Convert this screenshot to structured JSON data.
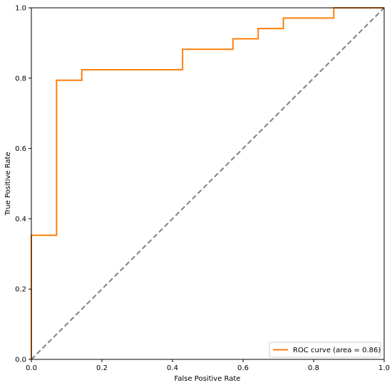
{
  "chart_data": {
    "type": "line",
    "xlabel": "False Positive Rate",
    "ylabel": "True Positive Rate",
    "xlim": [
      0.0,
      1.0
    ],
    "ylim": [
      0.0,
      1.0
    ],
    "grid": false,
    "legend_position": "lower-right",
    "x_ticks": [
      "0.0",
      "0.2",
      "0.4",
      "0.6",
      "0.8",
      "1.0"
    ],
    "y_ticks": [
      "0.0",
      "0.2",
      "0.4",
      "0.6",
      "0.8",
      "1.0"
    ],
    "series": [
      {
        "name": "ROC curve (area = 0.86)",
        "color": "#ff7f0e",
        "style": "step",
        "x": [
          0.0,
          0.0,
          0.0714,
          0.0714,
          0.1429,
          0.1429,
          0.4286,
          0.4286,
          0.5714,
          0.5714,
          0.6429,
          0.6429,
          0.7143,
          0.7143,
          0.8571,
          0.8571,
          1.0
        ],
        "y": [
          0.0,
          0.353,
          0.353,
          0.794,
          0.794,
          0.824,
          0.824,
          0.882,
          0.882,
          0.912,
          0.912,
          0.941,
          0.941,
          0.971,
          0.971,
          1.0,
          1.0
        ]
      },
      {
        "color": "#808080",
        "style": "dashed",
        "x": [
          0.0,
          1.0
        ],
        "y": [
          0.0,
          1.0
        ]
      }
    ]
  }
}
